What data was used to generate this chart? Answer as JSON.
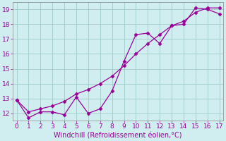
{
  "xlabel": "Windchill (Refroidissement éolien,°C)",
  "x": [
    0,
    1,
    2,
    3,
    4,
    5,
    6,
    7,
    8,
    9,
    10,
    11,
    12,
    13,
    14,
    15,
    16,
    17
  ],
  "series1": [
    12.9,
    11.7,
    12.1,
    12.1,
    11.9,
    13.1,
    12.0,
    12.3,
    13.5,
    15.5,
    17.3,
    17.4,
    16.7,
    17.9,
    18.0,
    19.1,
    19.0,
    18.7
  ],
  "series2": [
    12.9,
    12.1,
    12.3,
    12.5,
    12.8,
    13.3,
    13.6,
    14.0,
    14.5,
    15.2,
    16.0,
    16.7,
    17.3,
    17.9,
    18.2,
    18.8,
    19.1,
    19.1
  ],
  "line_color": "#990099",
  "bg_color": "#d0eef0",
  "grid_color": "#a0cccc",
  "ylim": [
    11.5,
    19.5
  ],
  "yticks": [
    12,
    13,
    14,
    15,
    16,
    17,
    18,
    19
  ],
  "xlim": [
    -0.3,
    17.3
  ],
  "xticks": [
    0,
    1,
    2,
    3,
    4,
    5,
    6,
    7,
    8,
    9,
    10,
    11,
    12,
    13,
    14,
    15,
    16,
    17
  ],
  "tick_labelsize": 6.5,
  "xlabel_fontsize": 7
}
